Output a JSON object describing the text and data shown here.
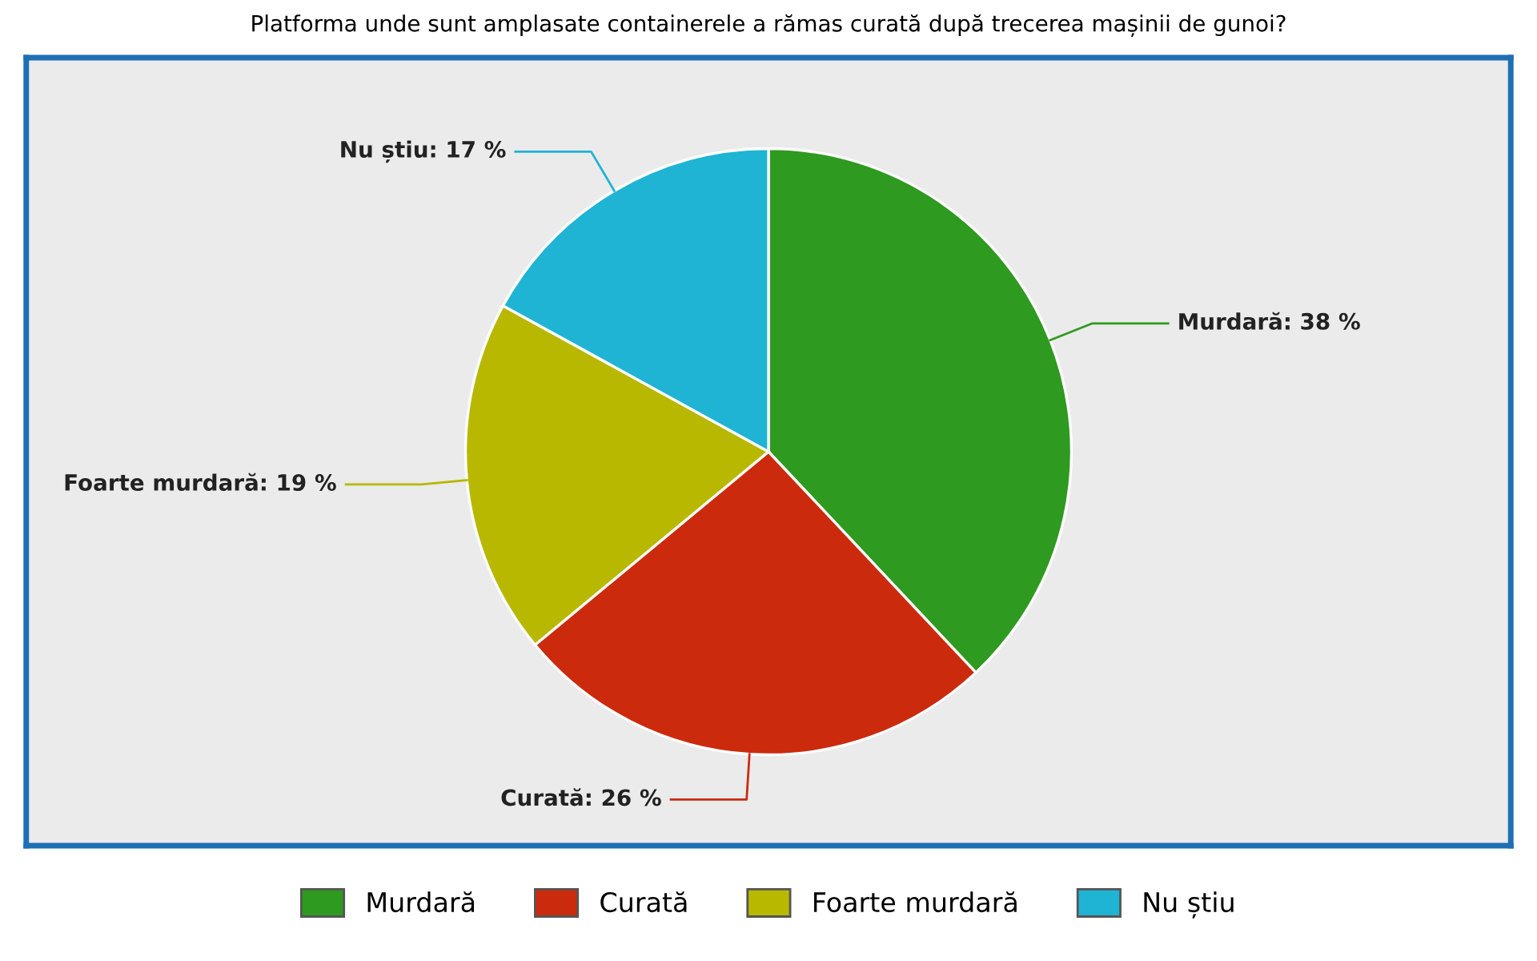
{
  "chart_data": {
    "type": "pie",
    "title": "Platforma unde sunt amplasate containerele a rămas curată după trecerea mașinii de gunoi?",
    "categories": [
      "Murdară",
      "Curată",
      "Foarte murdară",
      "Nu știu"
    ],
    "values": [
      38,
      26,
      19,
      17
    ],
    "colors": [
      "#2e9a1f",
      "#cc2a0c",
      "#b8b800",
      "#1fb4d4"
    ],
    "value_labels": [
      "Murdară: 38 %",
      "Curată: 26 %",
      "Foarte murdară: 19 %",
      "Nu știu: 17 %"
    ],
    "legend": "bottom"
  }
}
